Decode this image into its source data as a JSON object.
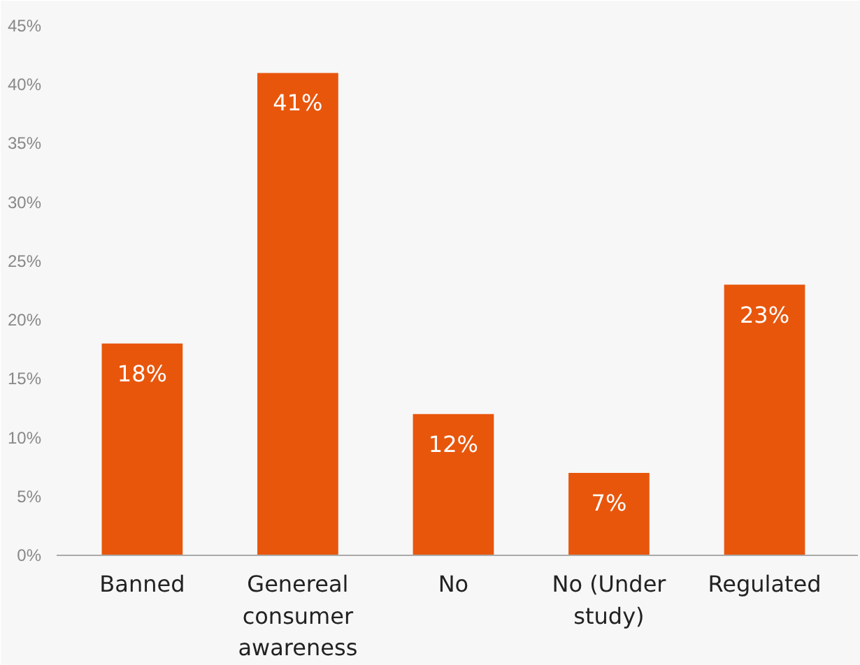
{
  "chart_data": {
    "type": "bar",
    "categories": [
      "Banned",
      "Genereal consumer awareness",
      "No",
      "No (Under study)",
      "Regulated"
    ],
    "values": [
      18,
      41,
      12,
      7,
      23
    ],
    "value_labels": [
      "18%",
      "41%",
      "12%",
      "7%",
      "23%"
    ],
    "color": "#e8560c",
    "ylim": [
      0,
      45
    ],
    "yticks": [
      {
        "value": 0,
        "label": "0%"
      },
      {
        "value": 5,
        "label": "5%"
      },
      {
        "value": 10,
        "label": "10%"
      },
      {
        "value": 15,
        "label": "15%"
      },
      {
        "value": 20,
        "label": "20%"
      },
      {
        "value": 25,
        "label": "25%"
      },
      {
        "value": 30,
        "label": "30%"
      },
      {
        "value": 35,
        "label": "35%"
      },
      {
        "value": 40,
        "label": "40%"
      },
      {
        "value": 45,
        "label": "45%"
      }
    ],
    "grid": false
  }
}
